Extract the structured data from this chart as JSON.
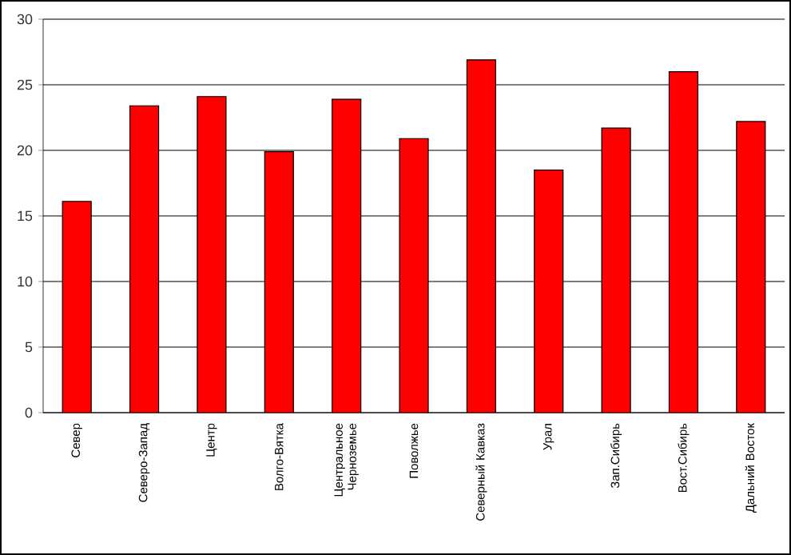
{
  "chart_data": {
    "type": "bar",
    "categories": [
      "Север",
      "Северо-Запад",
      "Центр",
      "Волго-Вятка",
      "Центральное Черноземье",
      "Поволжье",
      "Северный Кавказ",
      "Урал",
      "Зап.Сибирь",
      "Вост.Сибирь",
      "Дальний Восток"
    ],
    "values": [
      16.1,
      23.4,
      24.1,
      19.9,
      23.9,
      20.9,
      26.9,
      18.5,
      21.7,
      26.0,
      22.2
    ],
    "color": "#ff0000",
    "ylim": [
      0,
      30
    ],
    "yticks": [
      0,
      5,
      10,
      15,
      20,
      25,
      30
    ],
    "grid": "y"
  }
}
